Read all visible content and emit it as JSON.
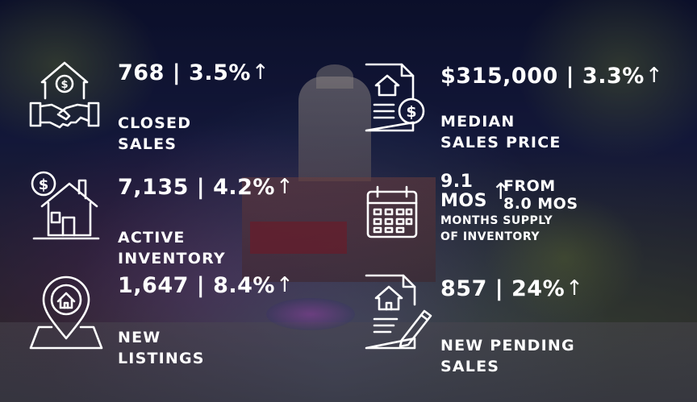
{
  "stats": {
    "closed": {
      "value": "768 | 3.5%",
      "arrow": "↑",
      "label_1": "CLOSED",
      "label_2": "SALES",
      "icon": "house-handshake-icon"
    },
    "median": {
      "value": "$315,000 | 3.3%",
      "arrow": "↑",
      "label_1": "MEDIAN",
      "label_2": "SALES PRICE",
      "icon": "house-document-dollar-icon"
    },
    "active": {
      "value": "7,135 | 4.2%",
      "arrow": "↑",
      "label_1": "ACTIVE",
      "label_2": "INVENTORY",
      "icon": "house-dollar-icon"
    },
    "supply": {
      "value_1": "9.1",
      "value_2": "MOS",
      "arrow": "↑",
      "from_1": "FROM",
      "from_2": "8.0 MOS",
      "label_1": "MONTHS SUPPLY",
      "label_2": "OF INVENTORY",
      "icon": "calendar-icon"
    },
    "new_listings": {
      "value": "1,647 | 8.4%",
      "arrow": "↑",
      "label_1": "NEW",
      "label_2": "LISTINGS",
      "icon": "location-pin-house-icon"
    },
    "pending": {
      "value": "857 | 24%",
      "arrow": "↑",
      "label_1": "NEW PENDING",
      "label_2": "SALES",
      "icon": "house-contract-pen-icon"
    }
  }
}
